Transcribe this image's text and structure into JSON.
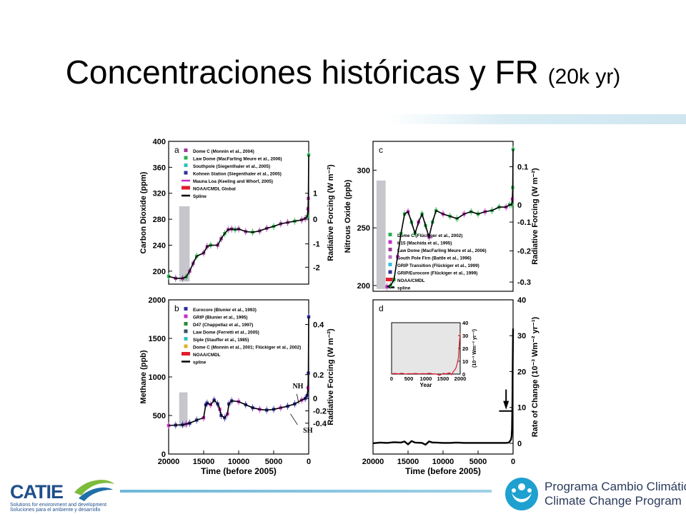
{
  "slide": {
    "title_main": "Concentraciones históricas y FR",
    "title_sub": "(20k yr)"
  },
  "colors": {
    "spline": "#000000",
    "grey_band": "#c6c6cc",
    "noaa": "#e01e2e",
    "accent_blue": "#1f4f8a"
  },
  "logos": {
    "catie_name": "CATIE",
    "catie_tag_en": "Solutions for environment and development",
    "catie_tag_es": "Soluciones para el ambiente y desarrollo",
    "program_es": "Programa Cambio Climático",
    "program_en": "Climate Change Program"
  },
  "chart_data": [
    {
      "panel_label": "a",
      "type": "scatter",
      "xlabel": "",
      "ylabel": "Carbon Dioxide (ppm)",
      "ylabel_right": "Radiative Forcing (W m⁻²)",
      "xlim": [
        20000,
        0
      ],
      "ylim": [
        180,
        400
      ],
      "yticks": [
        200,
        240,
        280,
        320,
        360,
        400
      ],
      "right_ticks": [
        {
          "v": 206,
          "l": "-2"
        },
        {
          "v": 242,
          "l": "-1"
        },
        {
          "v": 280,
          "l": "0"
        },
        {
          "v": 320,
          "l": "1"
        }
      ],
      "grey_band": {
        "x": [
          18500,
          17000
        ],
        "y": [
          184,
          300
        ]
      },
      "legend": [
        {
          "name": "Dome C (Monnin et al., 2004)",
          "color": "#9a3a9a",
          "marker": "square"
        },
        {
          "name": "Law Dome (MacFarling Meure et al., 2006)",
          "color": "#2ab050",
          "marker": "triangle"
        },
        {
          "name": "Southpole (Siegenthaler et al., 2005)",
          "color": "#30c0c0",
          "marker": "diamond"
        },
        {
          "name": "Kohnen Station (Siegenthaler et al., 2005)",
          "color": "#3030a0",
          "marker": "triangle-down"
        },
        {
          "name": "Mauna Loa (Keeling and Whorf, 2005)",
          "color": "#c030c0",
          "marker": "line"
        },
        {
          "name": "NOAA/CMDL Global",
          "color": "#e01e2e",
          "marker": "bar"
        },
        {
          "name": "Spline",
          "color": "#000000",
          "marker": "line"
        }
      ],
      "series": [
        {
          "name": "Spline",
          "x": [
            20000,
            19000,
            18000,
            17500,
            17000,
            16500,
            16000,
            15000,
            14500,
            14000,
            13000,
            12500,
            12000,
            11500,
            11000,
            10500,
            10000,
            9000,
            8000,
            7000,
            6000,
            5000,
            4000,
            3000,
            2000,
            1000,
            500,
            200,
            100,
            50,
            0
          ],
          "y": [
            192,
            189,
            189,
            191,
            200,
            212,
            223,
            228,
            238,
            240,
            240,
            250,
            258,
            264,
            265,
            264,
            265,
            261,
            260,
            262,
            266,
            269,
            273,
            275,
            277,
            279,
            281,
            284,
            296,
            312,
            379
          ]
        }
      ]
    },
    {
      "panel_label": "b",
      "type": "scatter",
      "xlabel": "Time (before 2005)",
      "ylabel": "Methane (ppb)",
      "ylabel_right": "Radiative Forcing (W m⁻²)",
      "xlim": [
        20000,
        0
      ],
      "ylim": [
        0,
        2000
      ],
      "yticks": [
        0,
        500,
        1000,
        1500,
        2000
      ],
      "xticks": [
        20000,
        15000,
        10000,
        5000,
        0
      ],
      "right_ticks": [
        {
          "v": 400,
          "l": "-0.4"
        },
        {
          "v": 560,
          "l": "-0.2"
        },
        {
          "v": 720,
          "l": "0"
        },
        {
          "v": 1030,
          "l": "0.2"
        },
        {
          "v": 1680,
          "l": "0.4"
        }
      ],
      "grey_band": {
        "x": [
          18500,
          17300
        ],
        "y": [
          350,
          800
        ]
      },
      "annotations": [
        "NH",
        "SH"
      ],
      "legend": [
        {
          "name": "Eurocore (Blunier et al., 1993)",
          "color": "#3030a0",
          "marker": "circle"
        },
        {
          "name": "GRIP (Blunier et al., 1995)",
          "color": "#c030c0",
          "marker": "square"
        },
        {
          "name": "D47 (Chappellaz et al., 1997)",
          "color": "#2a8a3a",
          "marker": "diamond"
        },
        {
          "name": "Law Dome (Ferretti et al., 2005)",
          "color": "#305060",
          "marker": "triangle"
        },
        {
          "name": "Siple (Stauffer et al., 1985)",
          "color": "#30c0c0",
          "marker": "diamond"
        },
        {
          "name": "Dome C (Monnin et al., 2001; Flückiger et al., 2002)",
          "color": "#e0b020",
          "marker": "triangle-down"
        },
        {
          "name": "NOAA/CMDL",
          "color": "#e01e2e",
          "marker": "bar"
        },
        {
          "name": "spline",
          "color": "#000000",
          "marker": "line"
        }
      ],
      "series": [
        {
          "name": "spline",
          "x": [
            20000,
            19000,
            18000,
            17500,
            17000,
            16000,
            15000,
            14700,
            14500,
            14000,
            13500,
            13000,
            12700,
            12500,
            12000,
            11600,
            11400,
            11000,
            10000,
            9000,
            8000,
            7000,
            6000,
            5000,
            4000,
            3000,
            2000,
            1000,
            500,
            200,
            100,
            50,
            0
          ],
          "y": [
            370,
            375,
            380,
            390,
            400,
            440,
            470,
            640,
            660,
            640,
            700,
            650,
            580,
            500,
            470,
            520,
            650,
            690,
            680,
            640,
            600,
            580,
            570,
            580,
            600,
            620,
            650,
            700,
            720,
            760,
            860,
            1050,
            1780
          ]
        }
      ]
    },
    {
      "panel_label": "c",
      "type": "scatter",
      "xlabel": "",
      "ylabel": "Nitrous Oxide (ppb)",
      "ylabel_right": "Radiative Forcing (W m⁻²)",
      "xlim": [
        20000,
        0
      ],
      "ylim": [
        195,
        325
      ],
      "yticks": [
        200,
        250,
        300
      ],
      "right_ticks": [
        {
          "v": 203,
          "l": "-0.3"
        },
        {
          "v": 230,
          "l": "-0.2"
        },
        {
          "v": 255,
          "l": "-0.1"
        },
        {
          "v": 270,
          "l": "0"
        },
        {
          "v": 303,
          "l": "0.1"
        }
      ],
      "grey_band": {
        "x": [
          19500,
          18200
        ],
        "y": [
          197,
          291
        ]
      },
      "legend": [
        {
          "name": "Dome C (Flückiger et al., 2002)",
          "color": "#2ab050",
          "marker": "circle"
        },
        {
          "name": "H15 (Machida et al., 1995)",
          "color": "#c030c0",
          "marker": "triangle"
        },
        {
          "name": "Law Dome (MacFarling Meure et al., 2006)",
          "color": "#9a3a9a",
          "marker": "diamond"
        },
        {
          "name": "South Pole Firn (Battle et al., 1996)",
          "color": "#c070c0",
          "marker": "diamond"
        },
        {
          "name": "GRIP Transition (Flückiger et al., 1999)",
          "color": "#30c0e0",
          "marker": "triangle"
        },
        {
          "name": "GRIP/Eurocore (Flückiger et al., 1999)",
          "color": "#3030a0",
          "marker": "square"
        },
        {
          "name": "NOAA/CMDL",
          "color": "#e01e2e",
          "marker": "bar"
        },
        {
          "name": "spline",
          "color": "#000000",
          "marker": "line"
        }
      ],
      "series": [
        {
          "name": "spline",
          "x": [
            18000,
            17500,
            17000,
            16500,
            16000,
            15500,
            15000,
            14500,
            14000,
            13500,
            13000,
            12500,
            12000,
            11500,
            11000,
            10000,
            9000,
            8000,
            7000,
            6000,
            5000,
            4000,
            3000,
            2000,
            1000,
            500,
            200,
            100,
            50,
            0
          ],
          "y": [
            199,
            200,
            205,
            225,
            245,
            262,
            264,
            255,
            245,
            255,
            262,
            252,
            242,
            255,
            265,
            262,
            260,
            258,
            262,
            264,
            262,
            264,
            265,
            268,
            268,
            270,
            270,
            275,
            285,
            318
          ]
        }
      ]
    },
    {
      "panel_label": "d",
      "type": "line",
      "xlabel": "Time (before 2005)",
      "ylabel": "",
      "ylabel_right": "Rate of Change (10⁻³ Wm⁻² yr⁻¹)",
      "xlim": [
        20000,
        0
      ],
      "ylim": [
        -3,
        40
      ],
      "xticks": [
        20000,
        15000,
        10000,
        5000,
        0
      ],
      "right_ticks": [
        {
          "v": 0,
          "l": "0"
        },
        {
          "v": 10,
          "l": "10"
        },
        {
          "v": 20,
          "l": "20"
        },
        {
          "v": 30,
          "l": "30"
        },
        {
          "v": 40,
          "l": "40"
        }
      ],
      "series": [
        {
          "name": "rate",
          "x": [
            20000,
            19000,
            18000,
            17000,
            16000,
            15500,
            15000,
            14500,
            14000,
            13000,
            12500,
            12000,
            11500,
            11000,
            10000,
            9000,
            8000,
            7000,
            6000,
            5000,
            4000,
            3000,
            2000,
            1000,
            600,
            300,
            200,
            150,
            100,
            50,
            0
          ],
          "y": [
            0,
            0.2,
            0.1,
            0.3,
            0.2,
            0.5,
            -0.3,
            0.6,
            0.2,
            0.1,
            -0.4,
            0.5,
            0.2,
            0.2,
            0.1,
            0.1,
            0.2,
            0.1,
            0.1,
            0.1,
            0.1,
            0.1,
            0.1,
            0.1,
            0.2,
            1.0,
            2.0,
            4.0,
            10,
            22,
            32
          ]
        }
      ],
      "inset": {
        "type": "line",
        "xlabel": "Year",
        "ylabel": "(10⁻³ Wm⁻² yr⁻¹)",
        "xlim": [
          0,
          2000
        ],
        "ylim": [
          0,
          40
        ],
        "xticks": [
          0,
          500,
          1000,
          1500,
          2000
        ],
        "yticks": [
          0,
          10,
          20,
          30,
          40
        ],
        "series": [
          {
            "name": "rate",
            "x": [
              0,
              100,
              200,
              300,
              400,
              500,
              600,
              700,
              800,
              900,
              1000,
              1100,
              1200,
              1300,
              1400,
              1500,
              1600,
              1700,
              1750,
              1800,
              1850,
              1880,
              1900,
              1920,
              1950,
              1970,
              2000
            ],
            "y": [
              0.3,
              0.5,
              0.2,
              0.6,
              0.1,
              0.4,
              0.3,
              0.5,
              0.2,
              0.4,
              0.3,
              0.6,
              0.2,
              0.1,
              -1.0,
              0.5,
              0.3,
              1.0,
              -0.5,
              2.0,
              3.5,
              5.0,
              7.0,
              9.0,
              13.0,
              22.0,
              32.0
            ]
          }
        ]
      }
    }
  ]
}
